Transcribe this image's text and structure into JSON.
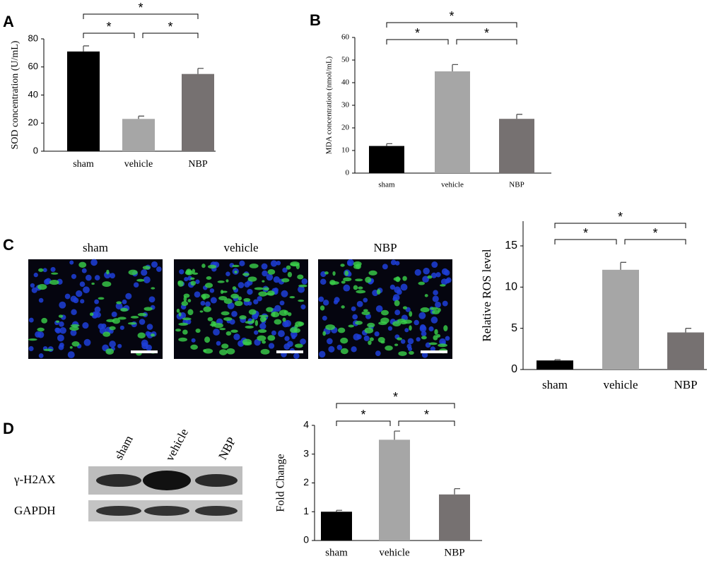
{
  "panel_labels": [
    "A",
    "B",
    "C",
    "D"
  ],
  "chart_data": [
    {
      "type": "bar",
      "ylabel": "SOD concentration (U/mL)",
      "categories": [
        "sham",
        "vehicle",
        "NBP"
      ],
      "values": [
        71,
        23,
        55
      ],
      "errors": [
        4,
        2,
        4
      ],
      "colors": [
        "#000000",
        "#a6a6a6",
        "#767171"
      ],
      "ylim": [
        0,
        80
      ],
      "yticks": [
        0,
        20,
        40,
        60,
        80
      ],
      "annotations": [
        "*",
        "*",
        "*"
      ]
    },
    {
      "type": "bar",
      "ylabel": "MDA concentration (nmol/mL)",
      "categories": [
        "sham",
        "vehicle",
        "NBP"
      ],
      "values": [
        12,
        45,
        24
      ],
      "errors": [
        1,
        3,
        2
      ],
      "colors": [
        "#000000",
        "#a6a6a6",
        "#767171"
      ],
      "ylim": [
        0,
        60
      ],
      "yticks": [
        0,
        10,
        20,
        30,
        40,
        50,
        60
      ],
      "annotations": [
        "*",
        "*",
        "*"
      ]
    },
    {
      "type": "bar",
      "ylabel": "Relative ROS level",
      "categories": [
        "sham",
        "vehicle",
        "NBP"
      ],
      "values": [
        1.1,
        12.1,
        4.5
      ],
      "errors": [
        0.1,
        0.9,
        0.5
      ],
      "colors": [
        "#000000",
        "#a6a6a6",
        "#767171"
      ],
      "ylim": [
        0,
        18
      ],
      "yticks": [
        0,
        5,
        10,
        15
      ],
      "annotations": [
        "*",
        "*",
        "*"
      ]
    },
    {
      "type": "bar",
      "ylabel": "Fold Change",
      "categories": [
        "sham",
        "vehicle",
        "NBP"
      ],
      "values": [
        1,
        3.5,
        1.6
      ],
      "errors": [
        0.05,
        0.3,
        0.2
      ],
      "colors": [
        "#000000",
        "#a6a6a6",
        "#767171"
      ],
      "ylim": [
        0,
        4
      ],
      "yticks": [
        0,
        1,
        2,
        3,
        4
      ],
      "annotations": [
        "*",
        "*",
        "*"
      ]
    }
  ],
  "micrographs": {
    "labels": [
      "sham",
      "vehicle",
      "NBP"
    ]
  },
  "blot": {
    "lanes": [
      "sham",
      "vehicle",
      "NBP"
    ],
    "rows": [
      "γ-H2AX",
      "GAPDH"
    ]
  }
}
